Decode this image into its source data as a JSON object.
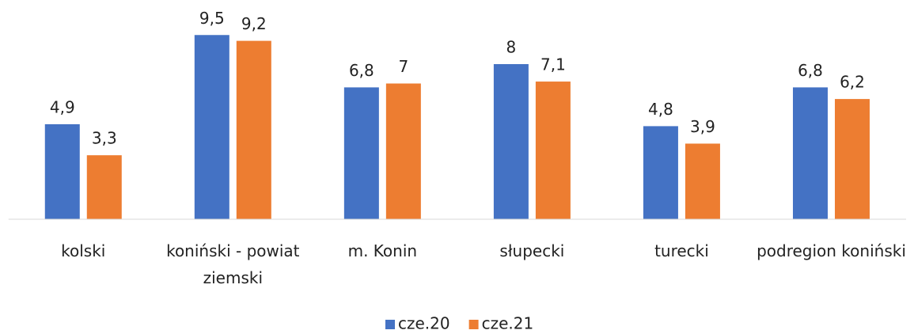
{
  "chart_data": {
    "type": "bar",
    "categories": [
      "kolski",
      "koniński - powiat ziemski",
      "m. Konin",
      "słupecki",
      "turecki",
      "podregion koniński"
    ],
    "series": [
      {
        "name": "cze.20",
        "color": "#4472c4",
        "values": [
          4.9,
          9.5,
          6.8,
          8,
          4.8,
          6.8
        ],
        "value_labels": [
          "4,9",
          "9,5",
          "6,8",
          "8",
          "4,8",
          "6,8"
        ]
      },
      {
        "name": "cze.21",
        "color": "#ed7d31",
        "values": [
          3.3,
          9.2,
          7,
          7.1,
          3.9,
          6.2
        ],
        "value_labels": [
          "3,3",
          "9,2",
          "7",
          "7,1",
          "3,9",
          "6,2"
        ]
      }
    ],
    "ylim": [
      0,
      10
    ],
    "legend": "bottom"
  }
}
